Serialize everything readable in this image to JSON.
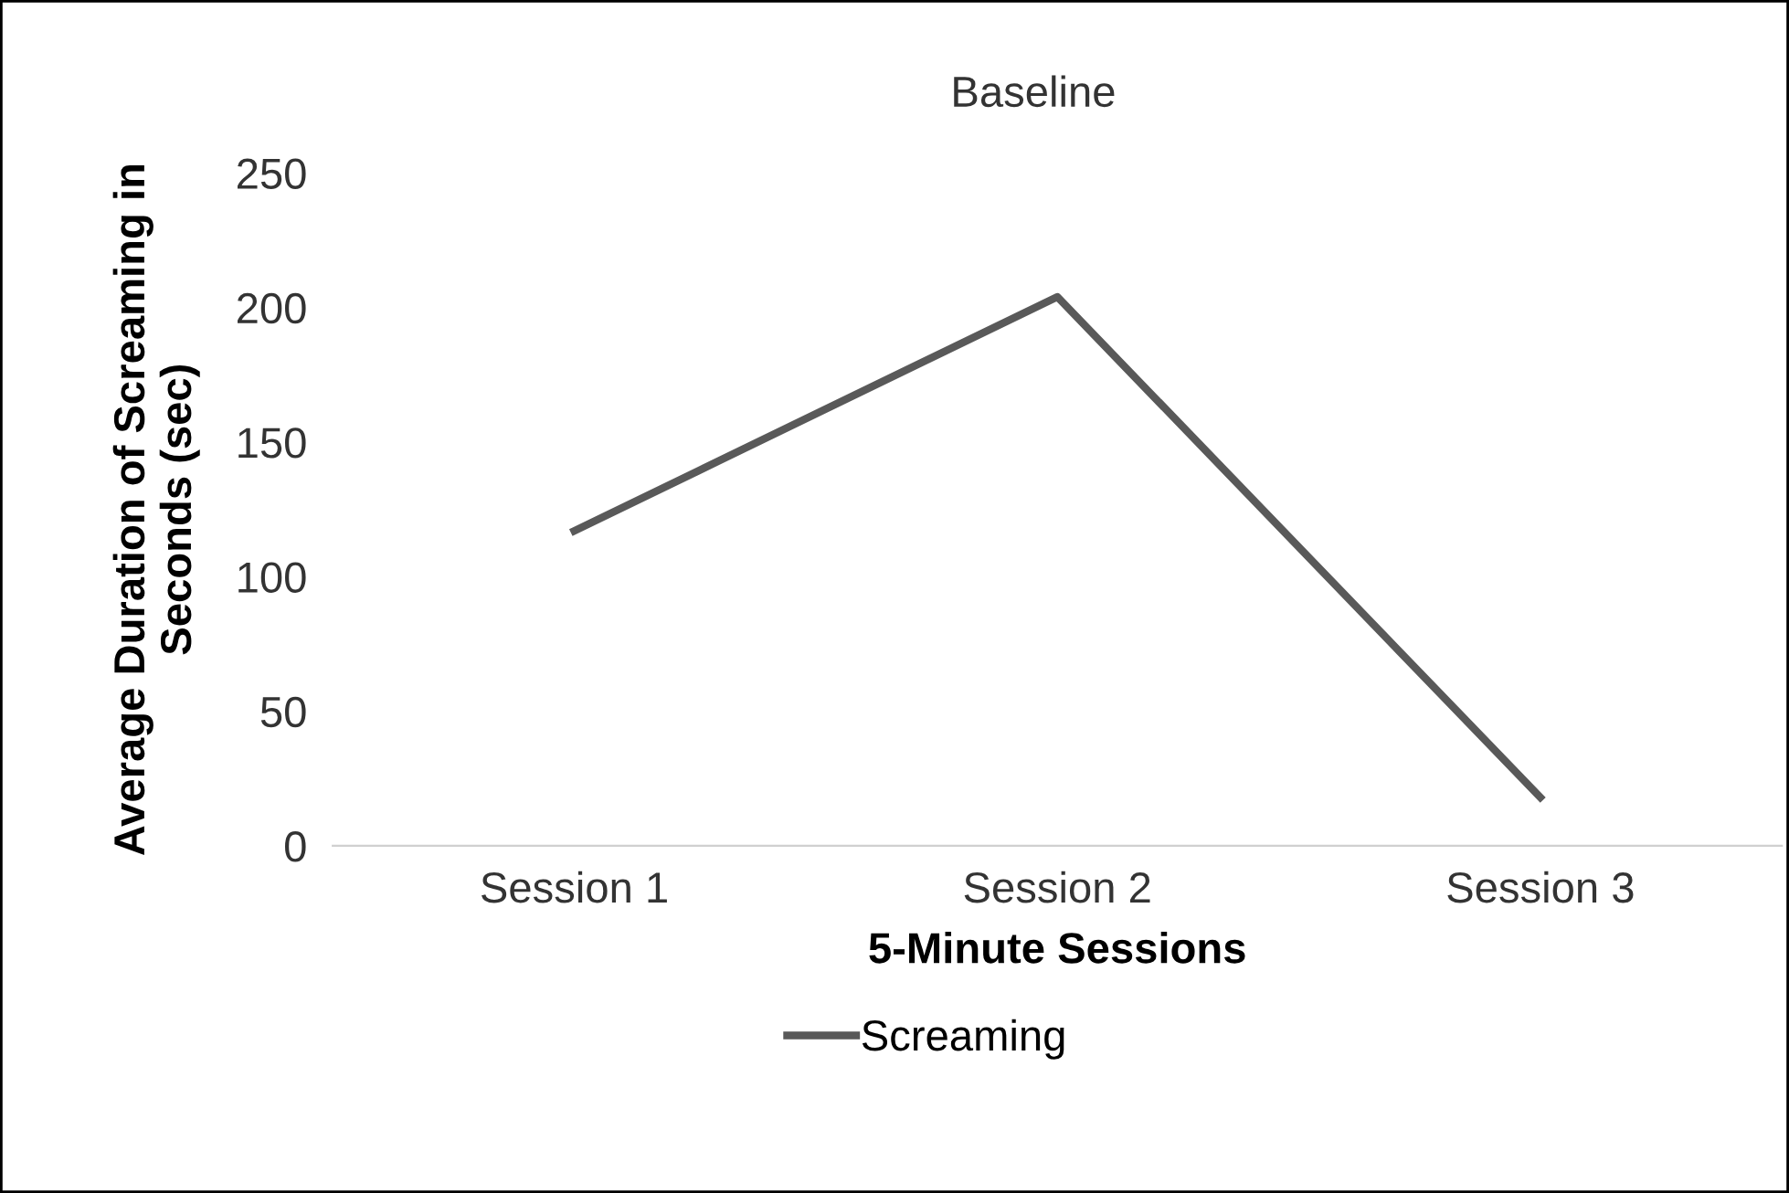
{
  "chart_data": {
    "type": "line",
    "title": "Baseline",
    "xlabel": "5-Minute Sessions",
    "ylabel": "Average Duration of Screaming in\nSeconds (sec)",
    "categories": [
      "Session 1",
      "Session 2",
      "Session 3"
    ],
    "series": [
      {
        "name": "Screaming",
        "color": "#595959",
        "values": [
          117,
          204,
          18
        ]
      }
    ],
    "ylim": [
      0,
      250
    ],
    "yticks": [
      0,
      50,
      100,
      150,
      200,
      250
    ],
    "grid": false,
    "legend": "bottom",
    "marker": "none",
    "line_style": "solid"
  }
}
